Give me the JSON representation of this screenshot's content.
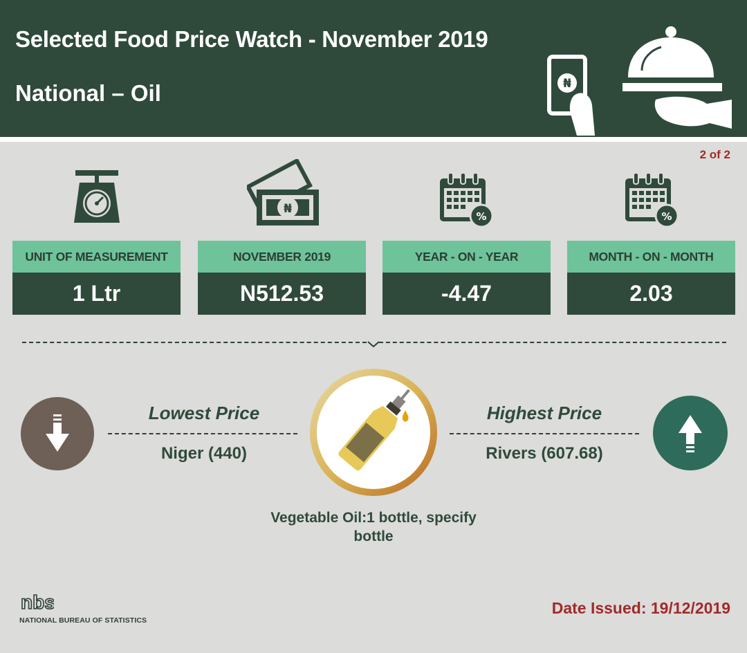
{
  "header": {
    "title": "Selected Food Price Watch - November 2019",
    "subtitle": "National – Oil",
    "currency_symbol": "₦"
  },
  "page_indicator": "2 of 2",
  "cards": [
    {
      "label": "UNIT OF MEASUREMENT",
      "value": "1 Ltr",
      "icon": "scale-icon"
    },
    {
      "label": "NOVEMBER 2019",
      "value": "N512.53",
      "icon": "money-icon"
    },
    {
      "label": "YEAR - ON - YEAR",
      "value": "-4.47",
      "icon": "calendar-percent-icon"
    },
    {
      "label": "MONTH - ON - MONTH",
      "value": "2.03",
      "icon": "calendar-percent-icon"
    }
  ],
  "lowest": {
    "heading": "Lowest Price",
    "value": "Niger (440)",
    "icon": "arrow-down-icon"
  },
  "highest": {
    "heading": "Highest Price",
    "value": "Rivers (607.68)",
    "icon": "arrow-up-icon"
  },
  "product": {
    "caption": "Vegetable Oil:1 bottle, specify bottle",
    "icon": "oil-bottle-icon"
  },
  "footer": {
    "logo_mark": "nbs",
    "logo_text": "NATIONAL BUREAU OF STATISTICS",
    "date_issued": "Date Issued: 19/12/2019"
  },
  "colors": {
    "dark_green": "#2f4a3b",
    "light_green": "#6ec39a",
    "background": "#dcdcda",
    "accent_red": "#a12a2a",
    "brown_circle": "#6e5f57",
    "teal_circle": "#2e6b5a"
  }
}
